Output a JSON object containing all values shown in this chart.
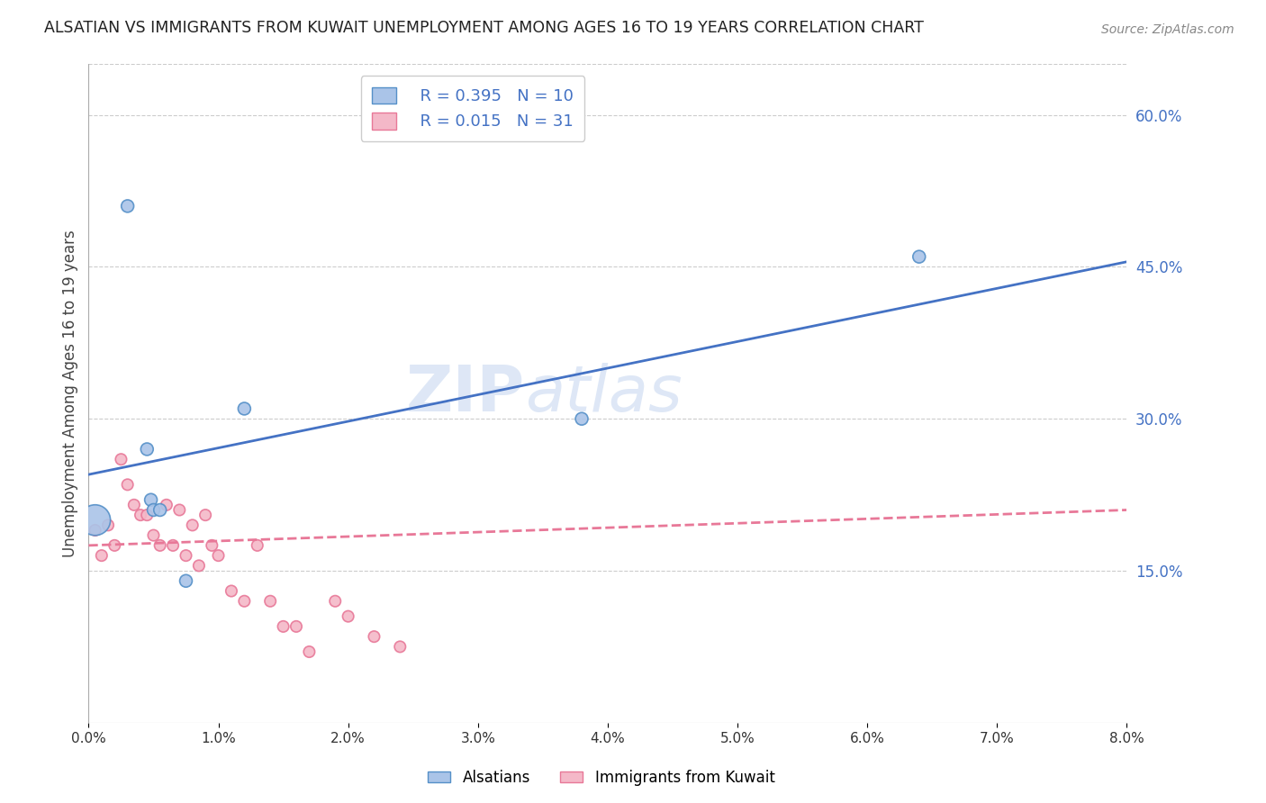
{
  "title": "ALSATIAN VS IMMIGRANTS FROM KUWAIT UNEMPLOYMENT AMONG AGES 16 TO 19 YEARS CORRELATION CHART",
  "source": "Source: ZipAtlas.com",
  "ylabel": "Unemployment Among Ages 16 to 19 years",
  "xlim": [
    0.0,
    0.08
  ],
  "ylim": [
    0.0,
    0.65
  ],
  "yticks_right": [
    0.15,
    0.3,
    0.45,
    0.6
  ],
  "ytick_labels_right": [
    "15.0%",
    "30.0%",
    "45.0%",
    "60.0%"
  ],
  "xticks": [
    0.0,
    0.01,
    0.02,
    0.03,
    0.04,
    0.05,
    0.06,
    0.07,
    0.08
  ],
  "xtick_labels": [
    "0.0%",
    "1.0%",
    "2.0%",
    "3.0%",
    "4.0%",
    "5.0%",
    "6.0%",
    "7.0%",
    "8.0%"
  ],
  "grid_color": "#cccccc",
  "background_color": "#ffffff",
  "alsatian_color": "#aac4e8",
  "alsatian_edge_color": "#5590c8",
  "kuwait_color": "#f4b8c8",
  "kuwait_edge_color": "#e87898",
  "blue_line_color": "#4472c4",
  "pink_line_color": "#e87898",
  "watermark_color": "#c8d8f0",
  "legend_r_blue": "R = 0.395",
  "legend_n_blue": "N = 10",
  "legend_r_pink": "R = 0.015",
  "legend_n_pink": "N = 31",
  "legend_label_blue": "Alsatians",
  "legend_label_pink": "Immigrants from Kuwait",
  "alsatian_x": [
    0.0005,
    0.003,
    0.0045,
    0.0048,
    0.005,
    0.0055,
    0.0075,
    0.012,
    0.038,
    0.064
  ],
  "alsatian_y": [
    0.2,
    0.51,
    0.27,
    0.22,
    0.21,
    0.21,
    0.14,
    0.31,
    0.3,
    0.46
  ],
  "alsatian_sizes": [
    600,
    100,
    100,
    100,
    100,
    100,
    100,
    100,
    100,
    100
  ],
  "kuwait_x": [
    0.0005,
    0.001,
    0.0015,
    0.002,
    0.0025,
    0.003,
    0.0035,
    0.004,
    0.0045,
    0.005,
    0.0055,
    0.006,
    0.0065,
    0.007,
    0.0075,
    0.008,
    0.0085,
    0.009,
    0.0095,
    0.01,
    0.011,
    0.012,
    0.013,
    0.014,
    0.015,
    0.016,
    0.017,
    0.019,
    0.02,
    0.022,
    0.024
  ],
  "kuwait_y": [
    0.19,
    0.165,
    0.195,
    0.175,
    0.26,
    0.235,
    0.215,
    0.205,
    0.205,
    0.185,
    0.175,
    0.215,
    0.175,
    0.21,
    0.165,
    0.195,
    0.155,
    0.205,
    0.175,
    0.165,
    0.13,
    0.12,
    0.175,
    0.12,
    0.095,
    0.095,
    0.07,
    0.12,
    0.105,
    0.085,
    0.075
  ],
  "kuwait_sizes": [
    80,
    80,
    80,
    80,
    80,
    80,
    80,
    80,
    80,
    80,
    80,
    80,
    80,
    80,
    80,
    80,
    80,
    80,
    80,
    80,
    80,
    80,
    80,
    80,
    80,
    80,
    80,
    80,
    80,
    80,
    80
  ],
  "blue_line_x": [
    0.0,
    0.08
  ],
  "blue_line_y": [
    0.245,
    0.455
  ],
  "pink_line_x": [
    0.0,
    0.08
  ],
  "pink_line_y": [
    0.175,
    0.21
  ]
}
